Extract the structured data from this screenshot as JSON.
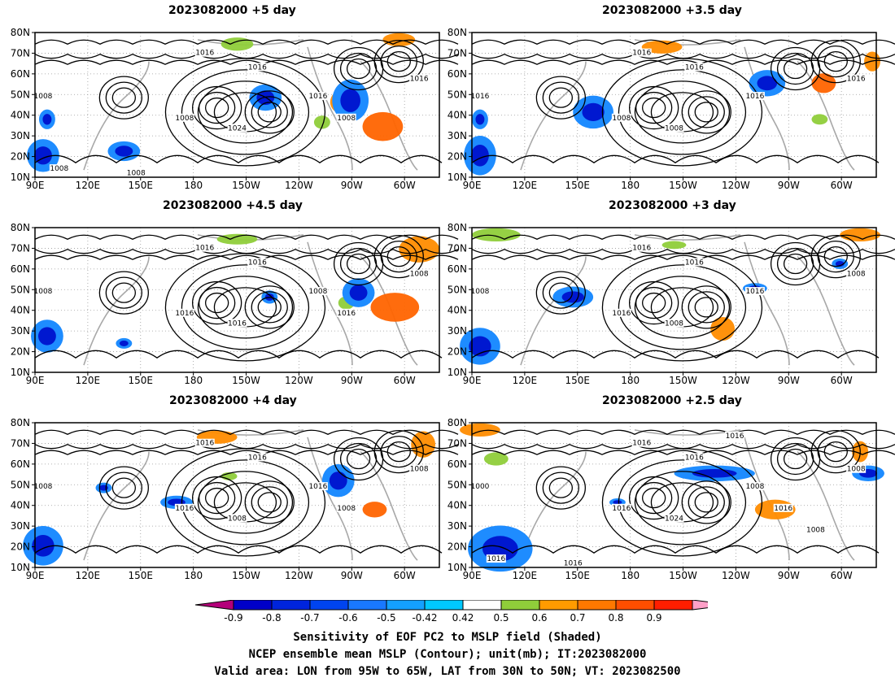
{
  "panels": [
    {
      "title": "2023082000  +5  day",
      "labels": [
        "1016",
        "1016",
        "1016",
        "1016",
        "1008",
        "1008",
        "1024",
        "1008",
        "1008",
        "1008"
      ],
      "blue": [
        [
          0.78,
          0.47,
          0.045,
          0.32
        ],
        [
          0.57,
          0.45,
          0.04,
          0.2
        ],
        [
          0.02,
          0.85,
          0.04,
          0.25
        ],
        [
          0.22,
          0.82,
          0.04,
          0.15
        ],
        [
          0.03,
          0.6,
          0.02,
          0.15
        ]
      ],
      "warm": [
        [
          0.76,
          0.48,
          0.03,
          0.18,
          "#ff8c00"
        ],
        [
          0.86,
          0.65,
          0.05,
          0.22,
          "#ff6400"
        ],
        [
          0.9,
          0.05,
          0.04,
          0.1,
          "#ff8c00"
        ],
        [
          0.5,
          0.08,
          0.04,
          0.1,
          "#8fce3a"
        ],
        [
          0.71,
          0.62,
          0.02,
          0.1,
          "#8fce3a"
        ]
      ]
    },
    {
      "title": "2023082000  +3.5  day",
      "labels": [
        "1016",
        "1016",
        "1016",
        "1016",
        "1016",
        "1008",
        "1008"
      ],
      "blue": [
        [
          0.3,
          0.55,
          0.05,
          0.25
        ],
        [
          0.73,
          0.35,
          0.045,
          0.2
        ],
        [
          0.02,
          0.85,
          0.04,
          0.3
        ],
        [
          0.02,
          0.6,
          0.02,
          0.15
        ]
      ],
      "warm": [
        [
          0.47,
          0.1,
          0.05,
          0.1,
          "#ff8c00"
        ],
        [
          0.87,
          0.35,
          0.03,
          0.15,
          "#ff6400"
        ],
        [
          0.99,
          0.2,
          0.02,
          0.15,
          "#ff8c00"
        ],
        [
          0.86,
          0.6,
          0.02,
          0.08,
          "#8fce3a"
        ]
      ]
    },
    {
      "title": "2023082000  +4.5  day",
      "labels": [
        "1016",
        "1016",
        "1008",
        "1008",
        "1008",
        "1016",
        "1016",
        "1016"
      ],
      "blue": [
        [
          0.8,
          0.45,
          0.04,
          0.22
        ],
        [
          0.58,
          0.48,
          0.02,
          0.1
        ],
        [
          0.03,
          0.75,
          0.04,
          0.25
        ],
        [
          0.22,
          0.8,
          0.02,
          0.08
        ]
      ],
      "warm": [
        [
          0.89,
          0.55,
          0.06,
          0.22,
          "#ff6400"
        ],
        [
          0.95,
          0.15,
          0.05,
          0.2,
          "#ff8c00"
        ],
        [
          0.5,
          0.08,
          0.05,
          0.08,
          "#8fce3a"
        ],
        [
          0.77,
          0.52,
          0.02,
          0.1,
          "#8fce3a"
        ]
      ]
    },
    {
      "title": "2023082000  +3  day",
      "labels": [
        "1016",
        "1016",
        "1016",
        "1008",
        "1008",
        "1016",
        "1008"
      ],
      "blue": [
        [
          0.25,
          0.48,
          0.05,
          0.16
        ],
        [
          0.02,
          0.82,
          0.05,
          0.28
        ],
        [
          0.7,
          0.42,
          0.03,
          0.08
        ],
        [
          0.91,
          0.25,
          0.02,
          0.08
        ]
      ],
      "warm": [
        [
          0.62,
          0.7,
          0.03,
          0.18,
          "#ff8c00"
        ],
        [
          0.96,
          0.05,
          0.05,
          0.1,
          "#ff8c00"
        ],
        [
          0.06,
          0.05,
          0.06,
          0.1,
          "#8fce3a"
        ],
        [
          0.5,
          0.12,
          0.03,
          0.06,
          "#8fce3a"
        ]
      ]
    },
    {
      "title": "2023082000  +4  day",
      "labels": [
        "1016",
        "1016",
        "1016",
        "1008",
        "1008",
        "1016",
        "1008",
        "1008"
      ],
      "blue": [
        [
          0.75,
          0.4,
          0.04,
          0.25
        ],
        [
          0.02,
          0.85,
          0.05,
          0.3
        ],
        [
          0.35,
          0.55,
          0.04,
          0.1
        ],
        [
          0.17,
          0.45,
          0.02,
          0.08
        ]
      ],
      "warm": [
        [
          0.45,
          0.1,
          0.05,
          0.1,
          "#ff8c00"
        ],
        [
          0.84,
          0.6,
          0.03,
          0.12,
          "#ff6400"
        ],
        [
          0.96,
          0.15,
          0.03,
          0.2,
          "#ff8c00"
        ],
        [
          0.48,
          0.37,
          0.02,
          0.06,
          "#8fce3a"
        ]
      ]
    },
    {
      "title": "2023082000  +2.5  day",
      "labels": [
        "1016",
        "1016",
        "1008",
        "1008",
        "1000",
        "1016",
        "1024",
        "1016",
        "1016",
        "1016",
        "1008",
        "1016"
      ],
      "blue": [
        [
          0.07,
          0.87,
          0.08,
          0.35
        ],
        [
          0.6,
          0.35,
          0.1,
          0.12
        ],
        [
          0.98,
          0.35,
          0.04,
          0.12
        ],
        [
          0.36,
          0.55,
          0.02,
          0.06
        ]
      ],
      "warm": [
        [
          0.02,
          0.05,
          0.05,
          0.1,
          "#ff8c00"
        ],
        [
          0.75,
          0.6,
          0.05,
          0.15,
          "#ff8c00"
        ],
        [
          0.96,
          0.2,
          0.02,
          0.16,
          "#ff8c00"
        ],
        [
          0.06,
          0.25,
          0.03,
          0.1,
          "#8fce3a"
        ]
      ]
    }
  ],
  "axes": {
    "lat_labels": [
      "80N",
      "70N",
      "60N",
      "50N",
      "40N",
      "30N",
      "20N",
      "10N"
    ],
    "lon_labels": [
      "90E",
      "120E",
      "150E",
      "180",
      "150W",
      "120W",
      "90W",
      "60W"
    ]
  },
  "colorbar": {
    "levels": [
      "-0.9",
      "-0.8",
      "-0.7",
      "-0.6",
      "-0.5",
      "-0.42",
      "0.42",
      "0.5",
      "0.6",
      "0.7",
      "0.8",
      "0.9"
    ],
    "colors": [
      "#b4007a",
      "#0000c8",
      "#0024dc",
      "#0044f0",
      "#1978ff",
      "#14a0ff",
      "#00c8ff",
      "#ffffff",
      "#8fce3a",
      "#ff9b00",
      "#ff7800",
      "#ff4e00",
      "#ff1e00",
      "#ffa0c8"
    ]
  },
  "captions": {
    "line1": "Sensitivity of EOF PC2 to MSLP field (Shaded)",
    "line2": "NCEP ensemble mean MSLP (Contour); unit(mb); IT:2023082000",
    "line3": "Valid area: LON from 95W to 65W, LAT from 30N to 50N; VT: 2023082500"
  }
}
